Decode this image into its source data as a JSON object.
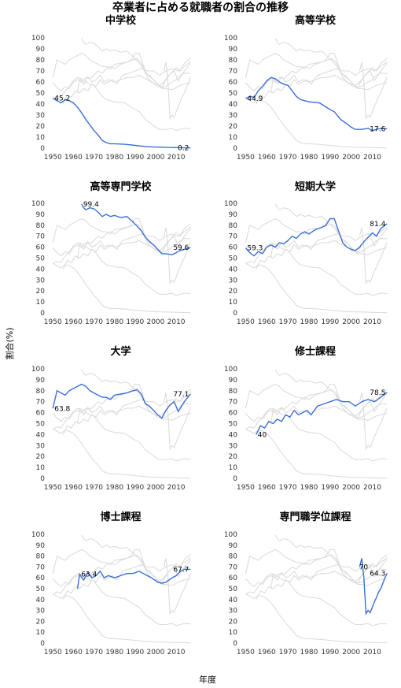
{
  "title": "卒業者に占める就職者の割合の推移",
  "xlabel": "年度",
  "ylabel": "割合(%)",
  "colors": {
    "highlight": "#3b6fd6",
    "background": "#d9d9d9",
    "text": "#222222"
  },
  "chart_data": {
    "type": "line",
    "layout": "small-multiples-4x2",
    "xlim": [
      1948,
      2018
    ],
    "ylim": [
      0,
      100
    ],
    "x_ticks": [
      1950,
      1960,
      1970,
      1980,
      1990,
      2000,
      2010
    ],
    "y_ticks": [
      0,
      10,
      20,
      30,
      40,
      50,
      60,
      70,
      80,
      90,
      100
    ],
    "grid": false,
    "series": [
      {
        "name": "中学校",
        "x": [
          1950,
          1952,
          1954,
          1956,
          1958,
          1960,
          1962,
          1964,
          1966,
          1968,
          1970,
          1972,
          1974,
          1976,
          1978,
          1980,
          1985,
          1990,
          1995,
          2000,
          2005,
          2010,
          2017
        ],
        "y": [
          45.2,
          43,
          41,
          44,
          43,
          41,
          37,
          32,
          26,
          21,
          16,
          12,
          7,
          5,
          4,
          4,
          3.5,
          2.5,
          1.5,
          1,
          0.8,
          0.5,
          0.2
        ],
        "labels": [
          {
            "x": 1950,
            "y": 45.2,
            "text": "45.2"
          },
          {
            "x": 2017,
            "y": 0.2,
            "text": "0.2"
          }
        ]
      },
      {
        "name": "高等学校",
        "x": [
          1950,
          1952,
          1954,
          1956,
          1958,
          1960,
          1962,
          1964,
          1966,
          1968,
          1970,
          1972,
          1974,
          1976,
          1978,
          1980,
          1985,
          1990,
          1992,
          1995,
          1998,
          2000,
          2002,
          2005,
          2008,
          2010,
          2012,
          2014,
          2017
        ],
        "y": [
          44.9,
          47,
          46,
          52,
          56,
          61,
          64,
          63,
          60,
          58,
          57,
          52,
          47,
          44,
          43,
          42,
          41,
          35,
          33,
          26,
          22,
          19,
          17,
          17,
          18,
          16,
          17,
          18,
          17.6
        ],
        "labels": [
          {
            "x": 1950,
            "y": 44.9,
            "text": "44.9"
          },
          {
            "x": 2017,
            "y": 17.6,
            "text": "17.6"
          }
        ]
      },
      {
        "name": "高等専門学校",
        "x": [
          1964,
          1965,
          1966,
          1968,
          1970,
          1972,
          1974,
          1976,
          1978,
          1980,
          1983,
          1986,
          1989,
          1991,
          1993,
          1995,
          1997,
          1999,
          2001,
          2003,
          2005,
          2008,
          2010,
          2012,
          2014,
          2017
        ],
        "y": [
          99.4,
          96,
          94,
          96,
          95,
          92,
          88,
          90,
          88,
          89,
          87,
          88,
          83,
          79,
          75,
          69,
          65,
          62,
          58,
          54,
          54,
          53,
          55,
          57,
          58,
          59.6
        ],
        "labels": [
          {
            "x": 1964,
            "y": 99.4,
            "text": "99.4"
          },
          {
            "x": 2017,
            "y": 59.6,
            "text": "59.6"
          }
        ]
      },
      {
        "name": "短期大学",
        "x": [
          1950,
          1952,
          1954,
          1956,
          1958,
          1960,
          1962,
          1964,
          1966,
          1968,
          1970,
          1972,
          1974,
          1976,
          1978,
          1980,
          1983,
          1986,
          1988,
          1990,
          1992,
          1994,
          1996,
          1998,
          2000,
          2002,
          2004,
          2006,
          2008,
          2010,
          2012,
          2014,
          2017
        ],
        "y": [
          59.3,
          55,
          52,
          56,
          54,
          60,
          62,
          60,
          64,
          63,
          66,
          70,
          68,
          72,
          74,
          72,
          76,
          78,
          80,
          86,
          86,
          75,
          64,
          60,
          58,
          57,
          60,
          65,
          69,
          73,
          70,
          77,
          81.4
        ],
        "labels": [
          {
            "x": 1950,
            "y": 59.3,
            "text": "59.3"
          },
          {
            "x": 2017,
            "y": 81.4,
            "text": "81.4"
          }
        ]
      },
      {
        "name": "大学",
        "x": [
          1950,
          1952,
          1954,
          1956,
          1958,
          1960,
          1962,
          1964,
          1966,
          1968,
          1970,
          1972,
          1974,
          1976,
          1978,
          1980,
          1983,
          1986,
          1989,
          1991,
          1993,
          1995,
          1997,
          1999,
          2001,
          2003,
          2005,
          2007,
          2009,
          2011,
          2014,
          2017
        ],
        "y": [
          63.8,
          80,
          78,
          76,
          80,
          82,
          84,
          86,
          84,
          80,
          78,
          76,
          74,
          74,
          72,
          76,
          77,
          78,
          80,
          81,
          77,
          68,
          66,
          62,
          58,
          55,
          62,
          67,
          70,
          61,
          70,
          77.1
        ],
        "labels": [
          {
            "x": 1950,
            "y": 63.8,
            "text": "63.8"
          },
          {
            "x": 2017,
            "y": 77.1,
            "text": "77.1"
          }
        ]
      },
      {
        "name": "修士課程",
        "x": [
          1955,
          1957,
          1959,
          1961,
          1963,
          1965,
          1967,
          1969,
          1971,
          1973,
          1975,
          1977,
          1979,
          1981,
          1984,
          1987,
          1990,
          1993,
          1996,
          1999,
          2002,
          2005,
          2008,
          2011,
          2014,
          2017
        ],
        "y": [
          40,
          48,
          46,
          52,
          50,
          54,
          52,
          58,
          56,
          62,
          58,
          60,
          62,
          58,
          66,
          68,
          70,
          72,
          70,
          70,
          66,
          70,
          72,
          70,
          74,
          78.5
        ],
        "labels": [
          {
            "x": 1955,
            "y": 40,
            "text": "40"
          },
          {
            "x": 2017,
            "y": 78.5,
            "text": "78.5"
          }
        ]
      },
      {
        "name": "博士課程",
        "x": [
          1962,
          1963,
          1965,
          1967,
          1969,
          1971,
          1973,
          1975,
          1977,
          1980,
          1983,
          1986,
          1989,
          1992,
          1995,
          1998,
          2001,
          2003,
          2005,
          2008,
          2010,
          2012,
          2014,
          2017
        ],
        "y": [
          50,
          63.4,
          58,
          65,
          60,
          62,
          66,
          60,
          62,
          60,
          62,
          64,
          64,
          66,
          63,
          60,
          56,
          55,
          56,
          60,
          62,
          66,
          68,
          67.7
        ],
        "labels": [
          {
            "x": 1963,
            "y": 63.4,
            "text": "63.4"
          },
          {
            "x": 2017,
            "y": 67.7,
            "text": "67.7"
          }
        ]
      },
      {
        "name": "専門職学位課程",
        "x": [
          2004,
          2005,
          2006,
          2007,
          2008,
          2009,
          2010,
          2011,
          2012,
          2013,
          2014,
          2015,
          2016,
          2017
        ],
        "y": [
          70,
          78,
          60,
          27,
          30,
          28,
          33,
          38,
          42,
          47,
          50,
          55,
          60,
          64.3
        ],
        "labels": [
          {
            "x": 2003,
            "y": 70,
            "text": "70"
          },
          {
            "x": 2017,
            "y": 64.3,
            "text": "64.3"
          }
        ]
      }
    ]
  }
}
